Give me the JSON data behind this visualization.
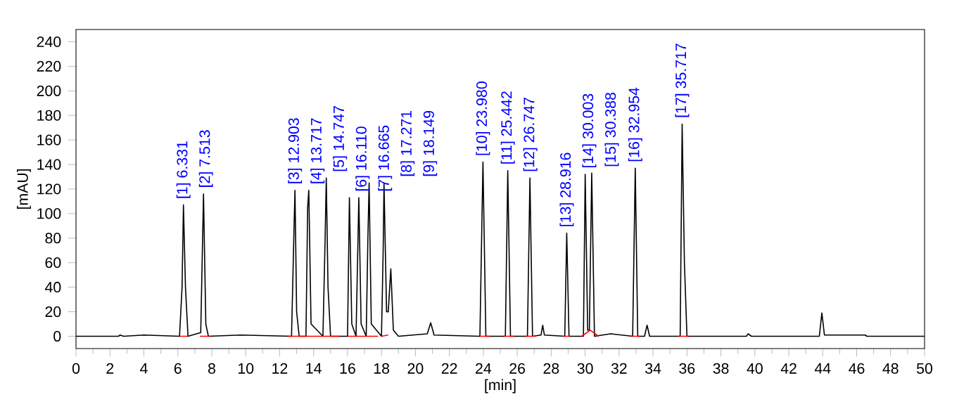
{
  "chart_data": {
    "type": "line",
    "xlabel": "[min]",
    "ylabel": "[mAU]",
    "xlim": [
      0,
      50
    ],
    "xticks": [
      0,
      2,
      4,
      6,
      8,
      10,
      12,
      14,
      16,
      18,
      20,
      22,
      24,
      26,
      28,
      30,
      32,
      34,
      36,
      38,
      40,
      42,
      44,
      46,
      48,
      50
    ],
    "ylim": [
      -10,
      250
    ],
    "yticks": [
      0,
      20,
      40,
      60,
      80,
      100,
      120,
      140,
      160,
      180,
      200,
      220,
      240
    ],
    "grid": false,
    "marker": "none",
    "line_style": "solid",
    "series": [
      {
        "color": "#000000",
        "x": [
          0,
          2.5,
          2.6,
          2.8,
          4,
          6.1,
          6.25,
          6.331,
          6.45,
          6.6,
          7.35,
          7.513,
          7.65,
          7.8,
          9.7,
          12.7,
          12.85,
          12.903,
          13.0,
          13.15,
          13.55,
          13.65,
          13.717,
          13.85,
          14.55,
          14.68,
          14.747,
          14.85,
          15.0,
          16.0,
          16.11,
          16.25,
          16.5,
          16.665,
          16.8,
          17.1,
          17.2,
          17.271,
          17.4,
          18.0,
          18.1,
          18.149,
          18.3,
          18.4,
          18.55,
          18.7,
          19.0,
          20.7,
          20.9,
          21.1,
          23.8,
          23.98,
          24.15,
          25.3,
          25.442,
          25.6,
          26.6,
          26.747,
          26.9,
          27.4,
          27.5,
          27.6,
          28.8,
          28.916,
          29.05,
          29.9,
          30.003,
          30.15,
          30.25,
          30.388,
          30.55,
          31.5,
          32.8,
          32.954,
          33.1,
          33.5,
          33.65,
          33.8,
          35.6,
          35.717,
          35.85,
          36.0,
          39.5,
          39.6,
          39.8,
          43.8,
          43.95,
          44.1,
          46.5,
          46.6,
          50
        ],
        "values": [
          0,
          0,
          1,
          0,
          1,
          0,
          40,
          107,
          40,
          0,
          3,
          116,
          10,
          0,
          1,
          0,
          90,
          119,
          20,
          0,
          0,
          105,
          119,
          10,
          0,
          80,
          129,
          40,
          0,
          0,
          113,
          10,
          0,
          113,
          10,
          0,
          80,
          125,
          10,
          0,
          70,
          125,
          20,
          20,
          55,
          5,
          0,
          2,
          11,
          1,
          0,
          142,
          0,
          0,
          135,
          0,
          0,
          129,
          0,
          1,
          9,
          1,
          0,
          84,
          0,
          0,
          132,
          5,
          5,
          133,
          0,
          2,
          0,
          137,
          0,
          0,
          9,
          0,
          0,
          173,
          60,
          0,
          0,
          2,
          0,
          0,
          19,
          1,
          1,
          0,
          0
        ]
      },
      {
        "color": "#ff0000",
        "x": [
          6.1,
          6.6,
          null,
          7.3,
          7.9,
          null,
          12.5,
          15.5,
          null,
          16.0,
          17.8,
          null,
          18.0,
          18.4,
          null,
          23.8,
          24.4,
          null,
          25.2,
          25.8,
          null,
          26.5,
          27.1,
          null,
          28.7,
          29.1,
          null,
          29.8,
          30.3,
          30.8,
          null,
          32.7,
          33.2,
          null,
          35.5,
          36.1
        ],
        "values": [
          0,
          0,
          null,
          0,
          0,
          null,
          0,
          0,
          null,
          0,
          0,
          null,
          0,
          1,
          null,
          0,
          0,
          null,
          0,
          0,
          null,
          0,
          0,
          null,
          0,
          0,
          null,
          0,
          5,
          0,
          null,
          0,
          0,
          null,
          0,
          0
        ]
      }
    ],
    "annotations": [
      {
        "text": "[1] 6.331",
        "x": 6.331,
        "y": 107
      },
      {
        "text": "[2] 7.513",
        "x": 7.513,
        "y": 116
      },
      {
        "text": "[3] 12.903",
        "x": 12.903,
        "y": 119
      },
      {
        "text": "[4] 13.717",
        "x": 13.717,
        "y": 119
      },
      {
        "text": "[5] 14.747",
        "x": 14.747,
        "y": 129
      },
      {
        "text": "[6] 16.110",
        "x": 16.11,
        "y": 113
      },
      {
        "text": "[7] 16.665",
        "x": 16.665,
        "y": 113
      },
      {
        "text": "[8] 17.271",
        "x": 17.271,
        "y": 125
      },
      {
        "text": "[9] 18.149",
        "x": 18.149,
        "y": 125
      },
      {
        "text": "[10] 23.980",
        "x": 23.98,
        "y": 142
      },
      {
        "text": "[11] 25.442",
        "x": 25.442,
        "y": 135
      },
      {
        "text": "[12] 26.747",
        "x": 26.747,
        "y": 129
      },
      {
        "text": "[13] 28.916",
        "x": 28.916,
        "y": 84
      },
      {
        "text": "[14] 30.003",
        "x": 30.003,
        "y": 132
      },
      {
        "text": "[15] 30.388",
        "x": 30.388,
        "y": 133
      },
      {
        "text": "[16] 32.954",
        "x": 32.954,
        "y": 137
      },
      {
        "text": "[17] 35.717",
        "x": 35.717,
        "y": 173
      }
    ]
  }
}
